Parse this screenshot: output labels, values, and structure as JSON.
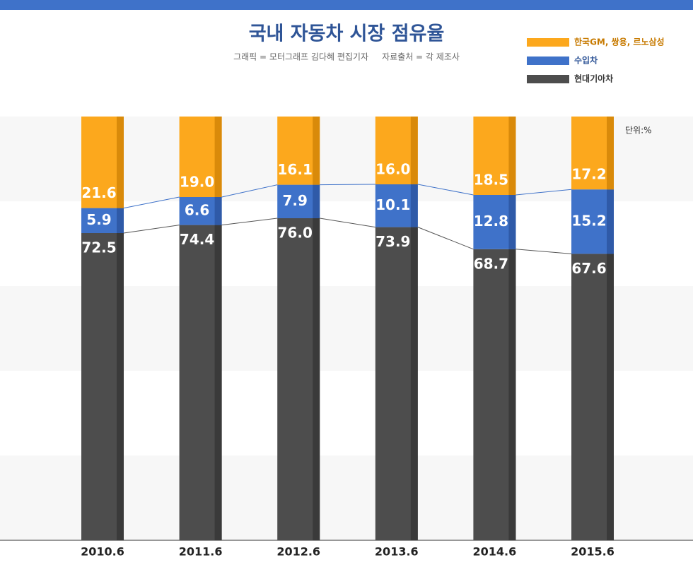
{
  "chart_data": {
    "type": "stacked-bar",
    "title": "국내 자동차 시장 점유율",
    "subtitle": "그래픽 = 모터그래프 김다혜 편집기자     자료출처 = 각 제조사",
    "unit": "단위:%",
    "categories": [
      "2010.6",
      "2011.6",
      "2012.6",
      "2013.6",
      "2014.6",
      "2015.6"
    ],
    "ylim": [
      0,
      100
    ],
    "series": [
      {
        "name": "현대기아차",
        "color": "#4d4d4d",
        "values": [
          72.5,
          74.4,
          76.0,
          73.9,
          68.7,
          67.6
        ],
        "value_labels": [
          "72.5",
          "74.4",
          "76.0",
          "73.9",
          "68.7",
          "67.6"
        ]
      },
      {
        "name": "수입차",
        "color": "#3f72c9",
        "values": [
          5.9,
          6.6,
          7.9,
          10.1,
          12.8,
          15.2
        ],
        "value_labels": [
          "5.9",
          "6.6",
          "7.9",
          "10.1",
          "12.8",
          "15.2"
        ]
      },
      {
        "name": "한국GM, 쌍용, 르노삼성",
        "color": "#fca81d",
        "values": [
          21.6,
          19.0,
          16.1,
          16.0,
          18.5,
          17.2
        ],
        "value_labels": [
          "21.6",
          "19.0",
          "16.1",
          "16.0",
          "18.5",
          "17.2"
        ]
      }
    ],
    "legend": "top-right"
  }
}
